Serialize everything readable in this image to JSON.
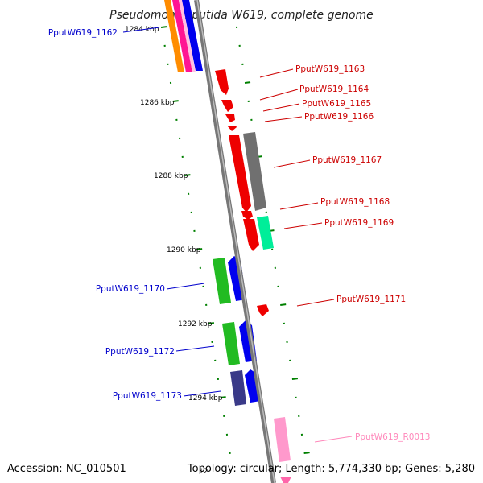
{
  "title": "Pseudomonas putida W619, complete genome",
  "footer": {
    "accession": "Accession: NC_010501",
    "topology": "Topology: circular; Length: 5,774,330 bp; Genes: 5,280"
  },
  "colors": {
    "backbone": "#888888",
    "tick": "#008000",
    "minus_label": "#0000cc",
    "plus_label": "#cc0000",
    "rna_label": "#ff88bb"
  },
  "kbp_labels": [
    "1284 kbp",
    "1286 kbp",
    "1288 kbp",
    "1290 kbp",
    "1292 kbp",
    "1294 kbp",
    "12"
  ],
  "genes": [
    {
      "id": "PputW619_1162",
      "strand": "-"
    },
    {
      "id": "PputW619_1163",
      "strand": "+"
    },
    {
      "id": "PputW619_1164",
      "strand": "+"
    },
    {
      "id": "PputW619_1165",
      "strand": "+"
    },
    {
      "id": "PputW619_1166",
      "strand": "+"
    },
    {
      "id": "PputW619_1167",
      "strand": "+"
    },
    {
      "id": "PputW619_1168",
      "strand": "+"
    },
    {
      "id": "PputW619_1169",
      "strand": "+"
    },
    {
      "id": "PputW619_1170",
      "strand": "-"
    },
    {
      "id": "PputW619_1171",
      "strand": "+"
    },
    {
      "id": "PputW619_1172",
      "strand": "-"
    },
    {
      "id": "PputW619_1173",
      "strand": "-"
    },
    {
      "id": "PputW619_R0013",
      "strand": "+"
    }
  ]
}
